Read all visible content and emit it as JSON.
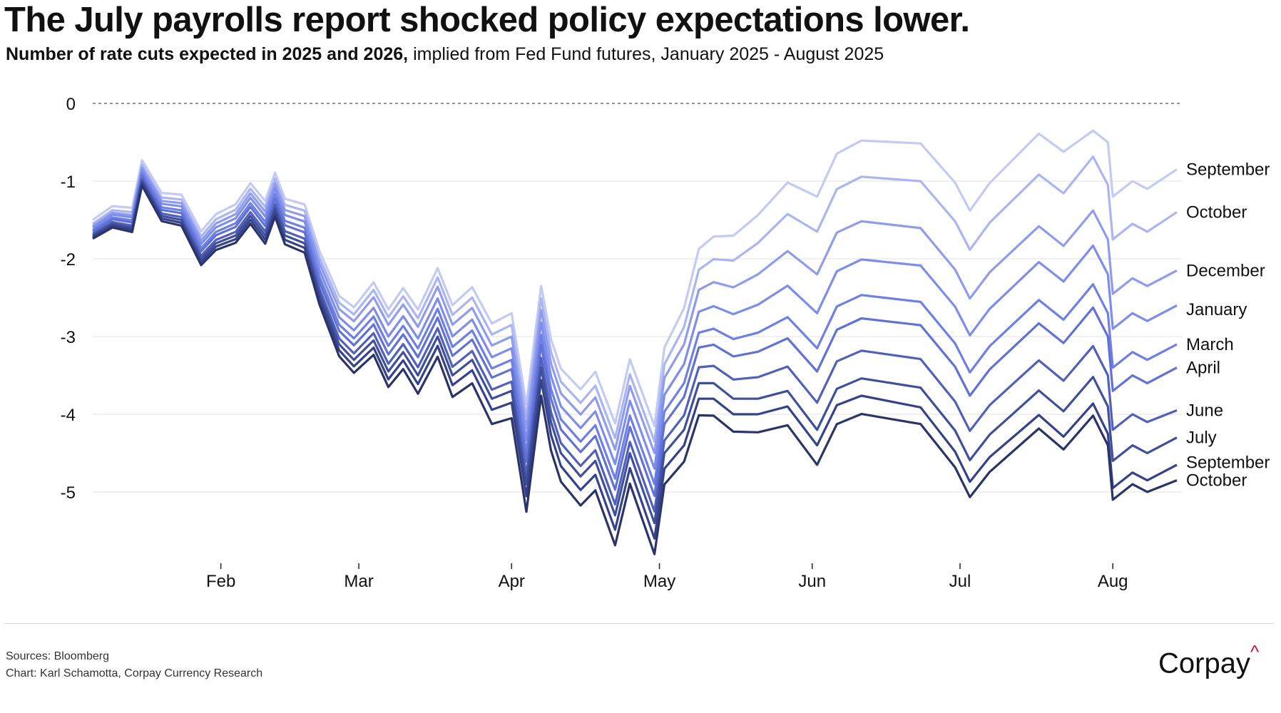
{
  "header": {
    "title": "The July payrolls report shocked policy expectations lower.",
    "subtitle_bold": "Number of rate cuts expected in 2025 and 2026,",
    "subtitle_rest": " implied from Fed Fund futures, January 2025 - August 2025"
  },
  "footer": {
    "sources": "Sources: Bloomberg",
    "credit": "Chart: Karl Schamotta, Corpay Currency Research",
    "logo_text": "Corpay",
    "logo_mark": "^"
  },
  "colors": {
    "light": "#c3cbf5",
    "mid": "#6e7fe6",
    "dark": "#2a3468",
    "accent": "#c8102e"
  },
  "chart_data": {
    "type": "line",
    "title": "",
    "xlabel": "",
    "ylabel": "",
    "ylim": [
      -5.85,
      0.1
    ],
    "y_ticks": [
      0,
      -1,
      -2,
      -3,
      -4,
      -5
    ],
    "y_tick_labels": [
      "0",
      "-1",
      "-2",
      "-3",
      "-4",
      "-5"
    ],
    "x_range": [
      "2025-01-06",
      "2025-08-14"
    ],
    "x_ticks": [
      "2025-02-01",
      "2025-03-01",
      "2025-04-01",
      "2025-05-01",
      "2025-06-01",
      "2025-07-01",
      "2025-08-01"
    ],
    "x_tick_labels": [
      "Feb",
      "Mar",
      "Apr",
      "May",
      "Jun",
      "Jul",
      "Aug"
    ],
    "zero_line": "dashed",
    "grid": "horizontal",
    "base": {
      "dates": [
        "2025-01-06",
        "2025-01-10",
        "2025-01-14",
        "2025-01-16",
        "2025-01-20",
        "2025-01-24",
        "2025-01-28",
        "2025-01-31",
        "2025-02-04",
        "2025-02-07",
        "2025-02-10",
        "2025-02-12",
        "2025-02-14",
        "2025-02-18",
        "2025-02-21",
        "2025-02-25",
        "2025-02-28",
        "2025-03-04",
        "2025-03-07",
        "2025-03-10",
        "2025-03-13",
        "2025-03-17",
        "2025-03-20",
        "2025-03-24",
        "2025-03-28",
        "2025-04-01",
        "2025-04-04",
        "2025-04-07",
        "2025-04-09",
        "2025-04-11",
        "2025-04-15",
        "2025-04-18",
        "2025-04-22",
        "2025-04-25",
        "2025-04-30",
        "2025-05-02",
        "2025-05-06",
        "2025-05-09",
        "2025-05-12",
        "2025-05-16",
        "2025-05-21",
        "2025-05-27",
        "2025-06-02",
        "2025-06-06",
        "2025-06-11",
        "2025-06-17",
        "2025-06-23",
        "2025-06-30",
        "2025-07-03",
        "2025-07-07",
        "2025-07-11",
        "2025-07-17",
        "2025-07-22",
        "2025-07-28",
        "2025-07-31",
        "2025-08-01",
        "2025-08-05",
        "2025-08-08",
        "2025-08-14"
      ],
      "values": [
        -1.7,
        -1.55,
        -1.6,
        -1.0,
        -1.45,
        -1.5,
        -2.0,
        -1.8,
        -1.7,
        -1.45,
        -1.7,
        -1.35,
        -1.7,
        -1.8,
        -2.45,
        -3.1,
        -3.3,
        -3.05,
        -3.45,
        -3.2,
        -3.5,
        -3.0,
        -3.5,
        -3.3,
        -3.8,
        -3.7,
        -4.9,
        -3.4,
        -4.1,
        -4.5,
        -4.8,
        -4.6,
        -5.3,
        -4.5,
        -5.4,
        -4.5,
        -4.2,
        -3.6,
        -3.6,
        -3.8,
        -3.8,
        -3.7,
        -4.2,
        -3.7,
        -3.6,
        -3.7,
        -3.8,
        -4.4,
        -4.8,
        -4.5,
        -4.3,
        -4.0,
        -4.3,
        -3.9,
        -4.3,
        -5.0,
        -4.8,
        -4.9,
        -4.7
      ]
    },
    "series": [
      {
        "name": "September",
        "offset": [
          0.2,
          0.5,
          0.8,
          1.0,
          1.25,
          3.0,
          3.8,
          3.8
        ],
        "final": -0.85
      },
      {
        "name": "October",
        "offset": [
          0.15,
          0.42,
          0.7,
          0.85,
          1.05,
          2.55,
          3.25,
          3.25
        ],
        "final": -1.4
      },
      {
        "name": "December",
        "offset": [
          0.12,
          0.35,
          0.6,
          0.7,
          0.9,
          2.0,
          2.55,
          2.55
        ],
        "final": -2.15
      },
      {
        "name": "January",
        "offset": [
          0.1,
          0.28,
          0.45,
          0.55,
          0.7,
          1.5,
          2.1,
          2.1
        ],
        "final": -2.6
      },
      {
        "name": "March",
        "offset": [
          0.07,
          0.2,
          0.33,
          0.4,
          0.5,
          1.05,
          1.6,
          1.6
        ],
        "final": -3.1
      },
      {
        "name": "April",
        "offset": [
          0.05,
          0.14,
          0.22,
          0.28,
          0.35,
          0.75,
          1.3,
          1.3
        ],
        "final": -3.4
      },
      {
        "name": "June",
        "offset": [
          0.02,
          0.06,
          0.1,
          0.12,
          0.15,
          0.35,
          0.8,
          0.8
        ],
        "final": -3.95
      },
      {
        "name": "July",
        "offset": [
          0.0,
          0.0,
          0.0,
          0.0,
          0.0,
          0.0,
          0.4,
          0.4
        ],
        "final": -4.3
      },
      {
        "name": "September",
        "offset": [
          -0.02,
          -0.06,
          -0.1,
          -0.15,
          -0.2,
          -0.2,
          0.05,
          0.05
        ],
        "final": -4.65
      },
      {
        "name": "October",
        "offset": [
          -0.04,
          -0.12,
          -0.2,
          -0.35,
          -0.4,
          -0.45,
          -0.1,
          -0.1
        ],
        "final": -4.85
      }
    ],
    "series_colors": [
      "#c3cbf5",
      "#aab5f2",
      "#8f9cee",
      "#7d8deb",
      "#6e7fe6",
      "#6171d6",
      "#5060bb",
      "#404f9c",
      "#35428a",
      "#2a3468"
    ]
  }
}
